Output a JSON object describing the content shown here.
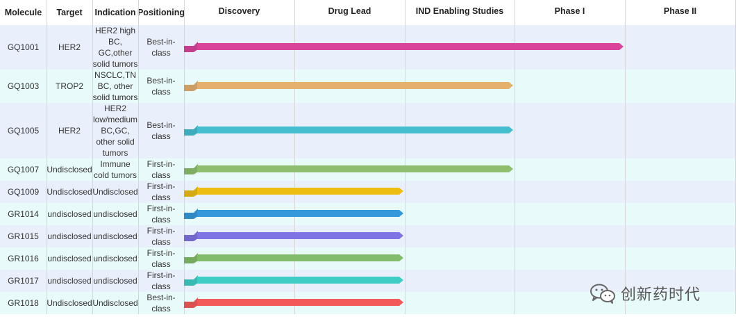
{
  "headers": {
    "molecule": "Molecule",
    "target": "Target",
    "indication": "Indication",
    "positioning": "Positioning"
  },
  "chart_data": {
    "type": "bar",
    "stages": [
      "Discovery",
      "Drug Lead",
      "IND Enabling Studies",
      "Phase I",
      "Phase II"
    ],
    "rows": [
      {
        "molecule": "GQ1001",
        "target": "HER2",
        "indication": "HER2 high\nBC,\nGC,other\nsolid tumors",
        "positioning": "Best-in-\nclass",
        "progress_stages": 4.0,
        "color": "#d9449a"
      },
      {
        "molecule": "GQ1003",
        "target": "TROP2",
        "indication": "NSCLC,TN\nBC, other\nsolid tumors",
        "positioning": "Best-in-\nclass",
        "progress_stages": 3.0,
        "color": "#e3b06e"
      },
      {
        "molecule": "GQ1005",
        "target": "HER2",
        "indication": "HER2\nlow/medium\nBC,GC,\nother solid\ntumors",
        "positioning": "Best-in-\nclass",
        "progress_stages": 3.0,
        "color": "#45bfcf"
      },
      {
        "molecule": "GQ1007",
        "target": "Undisclosed",
        "indication": "Immune\ncold tumors",
        "positioning": "First-in-\nclass",
        "progress_stages": 3.0,
        "color": "#8fbf6e"
      },
      {
        "molecule": "GQ1009",
        "target": "Undisclosed",
        "indication": "Undisclosed",
        "positioning": "First-in-\nclass",
        "progress_stages": 2.0,
        "color": "#edbd12"
      },
      {
        "molecule": "GR1014",
        "target": "undisclosed",
        "indication": "undisclosed",
        "positioning": "First-in-\nclass",
        "progress_stages": 2.0,
        "color": "#3498db"
      },
      {
        "molecule": "GR1015",
        "target": "undisclosed",
        "indication": "undisclosed",
        "positioning": "First-in-\nclass",
        "progress_stages": 2.0,
        "color": "#7f74e3"
      },
      {
        "molecule": "GR1016",
        "target": "undisclosed",
        "indication": "undisclosed",
        "positioning": "First-in-\nclass",
        "progress_stages": 2.0,
        "color": "#82bd6a"
      },
      {
        "molecule": "GR1017",
        "target": "undisclosed",
        "indication": "undisclosed",
        "positioning": "First-in-\nclass",
        "progress_stages": 2.0,
        "color": "#3fcdc6"
      },
      {
        "molecule": "GR1018",
        "target": "Undisclosed",
        "indication": "Undisclosed",
        "positioning": "Best-in-\nclass",
        "progress_stages": 2.0,
        "color": "#f25a5a"
      }
    ]
  },
  "watermark": {
    "text": "创新药时代",
    "icon": "wechat-icon"
  },
  "colors": {
    "row_a": "#e9effb",
    "row_b": "#e9fafb",
    "grid": "#d6d6d6"
  }
}
